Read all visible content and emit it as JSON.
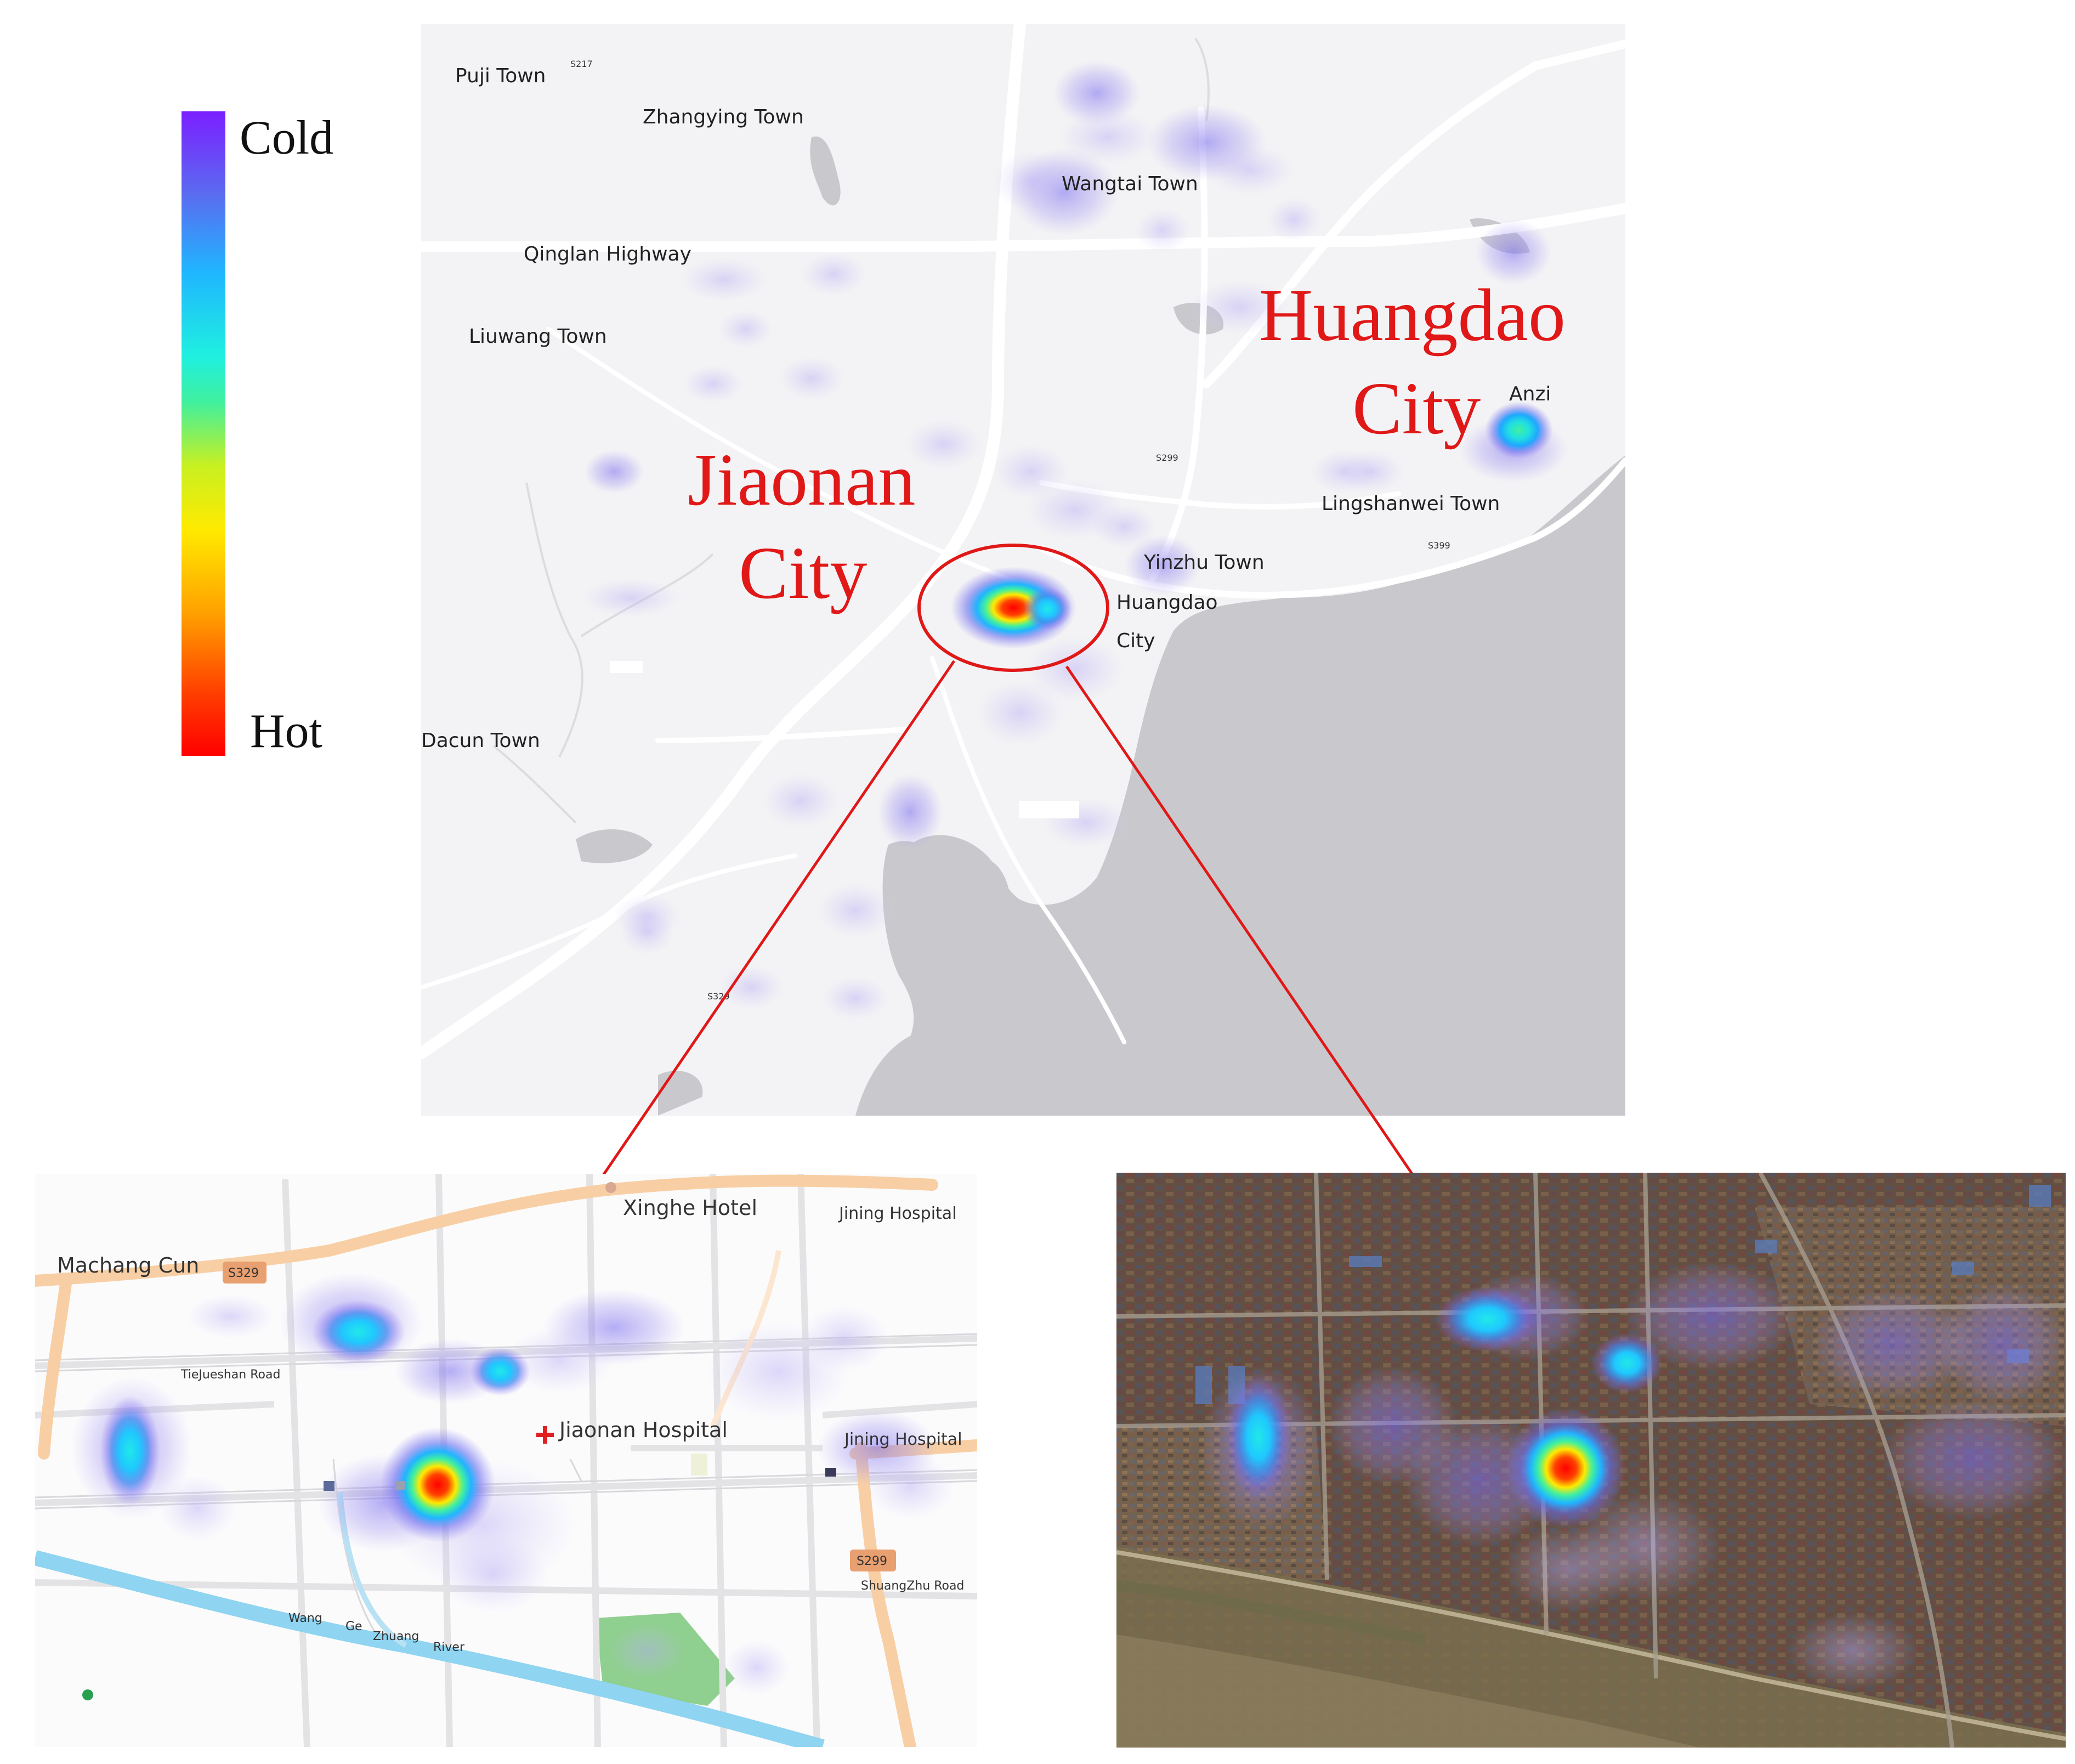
{
  "legend": {
    "high_label": "Cold",
    "low_label": "Hot",
    "gradient_stops": [
      "#7b1fff",
      "#5a6cf0",
      "#1fb6ff",
      "#1ff0e0",
      "#3ff0a0",
      "#c8f020",
      "#ffea00",
      "#ffa000",
      "#ff4000",
      "#ff0000"
    ]
  },
  "overview_map": {
    "place_labels": {
      "puji": "Puji Town",
      "zhangying": "Zhangying Town",
      "wangtai": "Wangtai Town",
      "qinglan": "Qinglan Highway",
      "liuwang": "Liuwang Town",
      "dacun": "Dacun Town",
      "anzi": "Anzi",
      "lingshanwei": "Lingshanwei Town",
      "yinzhu": "Yinzhu Town",
      "huangdao_line1": "Huangdao",
      "huangdao_line2": "City"
    },
    "road_shields": {
      "s217": "S217",
      "s299": "S299",
      "s399": "S399",
      "s329": "S329"
    },
    "callouts": {
      "jiaonan_line1": "Jiaonan",
      "jiaonan_line2": "City",
      "huangdao_line1": "Huangdao",
      "huangdao_line2": "City"
    }
  },
  "street_map": {
    "labels": {
      "machang": "Machang Cun",
      "xinghe": "Xinghe Hotel",
      "jining_top": "Jining Hospital",
      "tiejueshan": "TieJueshan Road",
      "jiaonan_hospital": "Jiaonan Hospital",
      "jining_right": "Jining Hospital",
      "shuangzhu": "ShuangZhu Road",
      "river_wang": "Wang",
      "river_ge": "Ge",
      "river_zhuang": "Zhuang",
      "river_river": "River"
    },
    "shields": {
      "s329": "S329",
      "s299": "S299"
    }
  },
  "colors": {
    "callout_red": "#e01818",
    "water_gray": "#c8c8cc",
    "land_gray": "#f2f2f4",
    "road_orange": "#f8c89a"
  }
}
